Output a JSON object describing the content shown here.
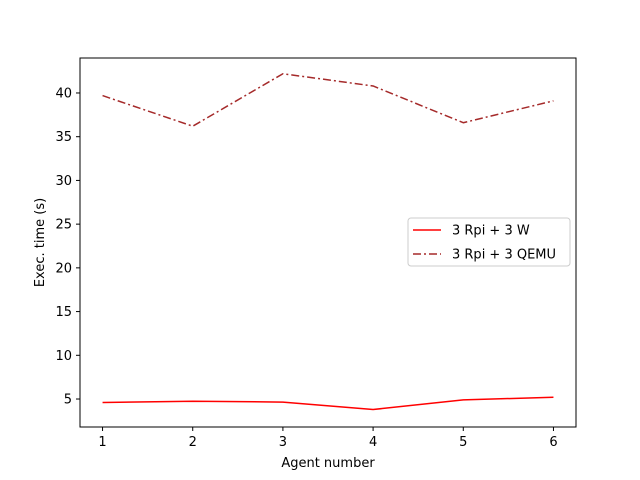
{
  "chart_data": {
    "type": "line",
    "x": [
      1,
      2,
      3,
      4,
      5,
      6
    ],
    "xlabel": "Agent number",
    "ylabel": "Exec. time (s)",
    "xlim": [
      0.75,
      6.25
    ],
    "ylim": [
      1.8,
      44.0
    ],
    "xticks": [
      1,
      2,
      3,
      4,
      5,
      6
    ],
    "yticks": [
      5,
      10,
      15,
      20,
      25,
      30,
      35,
      40
    ],
    "grid": false,
    "legend_position": "center-right",
    "series": [
      {
        "name": "3 Rpi + 3 W",
        "values": [
          4.6,
          4.75,
          4.65,
          3.8,
          4.9,
          5.2
        ],
        "color": "#ff0000",
        "linestyle": "solid"
      },
      {
        "name": "3 Rpi + 3 QEMU",
        "values": [
          39.7,
          36.2,
          42.2,
          40.8,
          36.6,
          39.1
        ],
        "color": "#a52a2a",
        "linestyle": "dashdot"
      }
    ]
  }
}
